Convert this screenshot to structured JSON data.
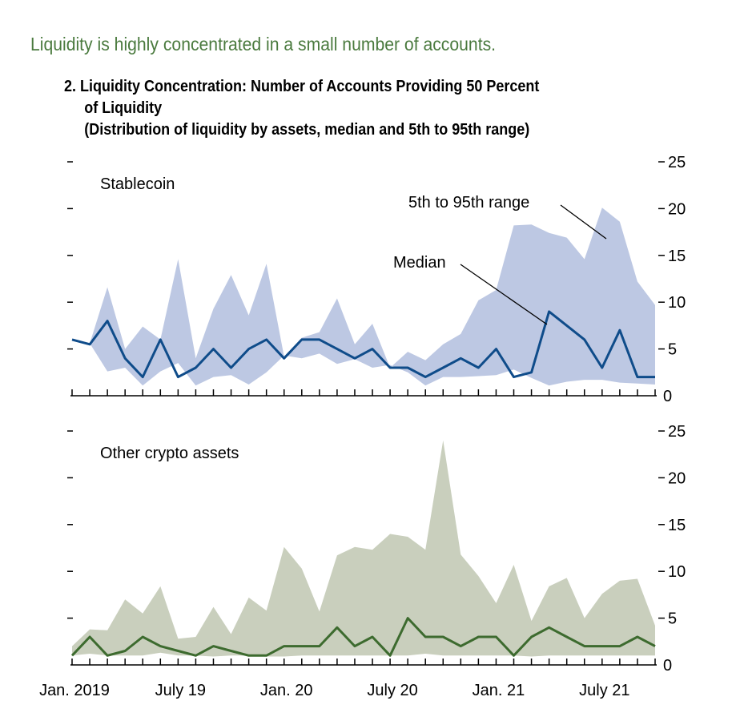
{
  "headline": "Liquidity is highly concentrated in a small number of accounts.",
  "title_line1": "2. Liquidity Concentration: Number of Accounts Providing 50 Percent",
  "title_line2": "of Liquidity",
  "title_line3": "(Distribution of liquidity by assets, median and 5th to 95th range)",
  "colors": {
    "headline": "#4a7a3e",
    "stable_band": "#bdc8e3",
    "stable_line": "#0f4c8a",
    "other_band": "#c9cfbd",
    "other_line": "#3d6b2f"
  },
  "chart_data": [
    {
      "type": "area",
      "panel_label": "Stablecoin",
      "annotations": [
        "5th to 95th range",
        "Median"
      ],
      "x_labels": [
        "Jan. 2019",
        "July 19",
        "Jan. 20",
        "July 20",
        "Jan. 21",
        "July 21"
      ],
      "x_label_index": [
        0,
        6,
        12,
        18,
        24,
        30
      ],
      "n_points": 34,
      "ylim": [
        0,
        25
      ],
      "yticks": [
        0,
        5,
        10,
        15,
        20,
        25
      ],
      "series": [
        {
          "name": "5th",
          "values": [
            6.1,
            5.6,
            2.6,
            3.0,
            1.1,
            2.6,
            3.5,
            1.1,
            2.0,
            2.2,
            1.2,
            2.5,
            4.3,
            4.0,
            4.5,
            3.4,
            3.9,
            3.0,
            3.3,
            2.5,
            1.1,
            2.0,
            2.0,
            2.1,
            2.2,
            2.8,
            1.9,
            1.1,
            1.5,
            1.7,
            1.7,
            1.4,
            1.3,
            1.2
          ]
        },
        {
          "name": "95th",
          "values": [
            6.1,
            5.6,
            11.6,
            5.0,
            7.4,
            6.0,
            14.6,
            4.0,
            9.3,
            12.9,
            8.6,
            14.1,
            4.2,
            6.2,
            6.8,
            10.4,
            5.5,
            7.7,
            3.0,
            4.7,
            3.8,
            5.5,
            6.6,
            10.2,
            11.3,
            18.2,
            18.3,
            17.4,
            16.9,
            14.6,
            20.1,
            18.6,
            12.2,
            9.7
          ]
        },
        {
          "name": "Median",
          "values": [
            6,
            5.5,
            8,
            4,
            2,
            6,
            2,
            3,
            5,
            3,
            5,
            6,
            4,
            6,
            6,
            5,
            4,
            5,
            3,
            3,
            2,
            3,
            4,
            3,
            5,
            2,
            2.5,
            9,
            7.5,
            6,
            3,
            7,
            2,
            2
          ]
        }
      ]
    },
    {
      "type": "area",
      "panel_label": "Other crypto assets",
      "x_labels": [
        "Jan. 2019",
        "July 19",
        "Jan. 20",
        "July 20",
        "Jan. 21",
        "July 21"
      ],
      "x_label_index": [
        0,
        6,
        12,
        18,
        24,
        30
      ],
      "n_points": 34,
      "ylim": [
        0,
        25
      ],
      "yticks": [
        0,
        5,
        10,
        15,
        20,
        25
      ],
      "series": [
        {
          "name": "5th",
          "values": [
            1,
            1.2,
            1,
            1,
            1,
            1.3,
            1,
            1,
            0.9,
            1,
            1,
            0.9,
            0.9,
            1,
            1,
            1,
            1,
            1,
            1,
            1,
            1.2,
            1,
            1,
            1,
            1,
            1,
            0.9,
            1,
            1,
            1,
            1,
            1,
            1,
            1
          ]
        },
        {
          "name": "95th",
          "values": [
            2.0,
            3.8,
            3.7,
            7.0,
            5.5,
            8.4,
            2.8,
            3.0,
            6.2,
            3.3,
            7.2,
            5.8,
            12.6,
            10.3,
            5.7,
            11.7,
            12.6,
            12.3,
            14.0,
            13.7,
            12.3,
            24.0,
            11.8,
            9.5,
            6.6,
            10.7,
            4.7,
            8.4,
            9.3,
            5.0,
            7.6,
            9.0,
            9.2,
            4.2
          ]
        },
        {
          "name": "Median",
          "values": [
            1,
            3,
            1,
            1.5,
            3,
            2,
            1.5,
            1,
            2,
            1.5,
            1,
            1,
            2,
            2,
            2,
            4,
            2,
            3,
            1,
            5,
            3,
            3,
            2,
            3,
            3,
            1,
            3,
            4,
            3,
            2,
            2,
            2,
            3,
            2
          ]
        }
      ]
    }
  ]
}
